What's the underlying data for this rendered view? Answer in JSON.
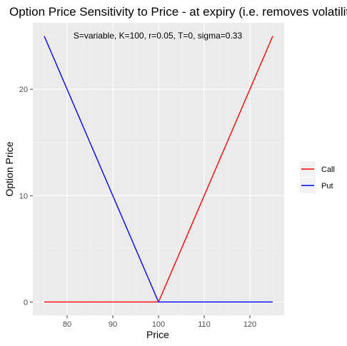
{
  "chart_data": {
    "type": "line",
    "title": "Option Price Sensitivity to Price - at expiry (i.e. removes volatility)",
    "annotation": "S=variable, K=100, r=0.05, T=0, sigma=0.33",
    "xlabel": "Price",
    "ylabel": "Option Price",
    "xlim": [
      72.5,
      127.5
    ],
    "ylim": [
      -1.25,
      26.25
    ],
    "x_ticks": [
      80,
      90,
      100,
      110,
      120
    ],
    "y_ticks": [
      0,
      10,
      20
    ],
    "grid": true,
    "legend_position": "right",
    "series": [
      {
        "name": "Call",
        "color": "#ff0000",
        "points": [
          [
            75,
            0
          ],
          [
            100,
            0
          ],
          [
            125,
            25
          ]
        ]
      },
      {
        "name": "Put",
        "color": "#0000ff",
        "points": [
          [
            75,
            25
          ],
          [
            100,
            0
          ],
          [
            125,
            0
          ]
        ]
      }
    ]
  }
}
